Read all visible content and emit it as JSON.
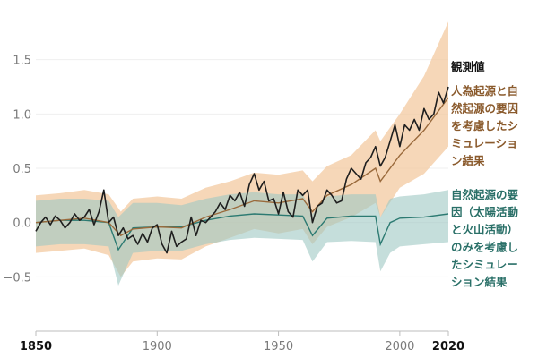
{
  "colors": {
    "observed": "#1e1e1e",
    "human_natural": "#9a6a3c",
    "human_natural_band": "#f3c9a0",
    "natural_only": "#2c7a72",
    "natural_only_band": "#9fc8c3",
    "overlap_band": "#c9c3b6",
    "axis": "#bdbdbd",
    "grid": "#efefef"
  },
  "chart_data": {
    "type": "line",
    "title": "",
    "xlabel": "",
    "ylabel": "",
    "xlim": [
      1850,
      2020
    ],
    "ylim": [
      -1.0,
      2.0
    ],
    "grid": true,
    "y_ticks": [
      {
        "value": -0.5,
        "label": "−0.5"
      },
      {
        "value": 0.0,
        "label": "0.0"
      },
      {
        "value": 0.5,
        "label": "0.5"
      },
      {
        "value": 1.0,
        "label": "1.0"
      },
      {
        "value": 1.5,
        "label": "1.5"
      }
    ],
    "x_ticks": [
      {
        "value": 1850,
        "label": "1850",
        "bold": true
      },
      {
        "value": 1900,
        "label": "1900",
        "bold": false
      },
      {
        "value": 1950,
        "label": "1950",
        "bold": false
      },
      {
        "value": 2000,
        "label": "2000",
        "bold": false
      },
      {
        "value": 2020,
        "label": "2020",
        "bold": true
      }
    ],
    "legend": [
      {
        "series": "observed",
        "lines": [
          "観測値"
        ]
      },
      {
        "series": "human_natural",
        "lines": [
          "人為起源と自",
          "然起源の要因",
          "を考慮したシ",
          "ミュレーショ",
          "ン結果"
        ]
      },
      {
        "series": "natural_only",
        "lines": [
          "自然起源の要",
          "因（太陽活動",
          "と火山活動）",
          "のみを考慮し",
          "たシミュレー",
          "ション結果"
        ]
      }
    ],
    "series": [
      {
        "id": "observed",
        "name": "観測値",
        "x": [
          1850,
          1852,
          1854,
          1856,
          1858,
          1860,
          1862,
          1864,
          1866,
          1868,
          1870,
          1872,
          1874,
          1876,
          1878,
          1880,
          1882,
          1884,
          1886,
          1888,
          1890,
          1892,
          1894,
          1896,
          1898,
          1900,
          1902,
          1904,
          1906,
          1908,
          1910,
          1912,
          1914,
          1916,
          1918,
          1920,
          1922,
          1924,
          1926,
          1928,
          1930,
          1932,
          1934,
          1936,
          1938,
          1940,
          1942,
          1944,
          1946,
          1948,
          1950,
          1952,
          1954,
          1956,
          1958,
          1960,
          1962,
          1964,
          1966,
          1968,
          1970,
          1972,
          1974,
          1976,
          1978,
          1980,
          1982,
          1984,
          1986,
          1988,
          1990,
          1992,
          1994,
          1996,
          1998,
          2000,
          2002,
          2004,
          2006,
          2008,
          2010,
          2012,
          2014,
          2016,
          2018,
          2020
        ],
        "y": [
          -0.08,
          0.0,
          0.05,
          -0.02,
          0.06,
          0.02,
          -0.05,
          0.0,
          0.08,
          0.02,
          0.05,
          0.12,
          -0.02,
          0.1,
          0.3,
          0.0,
          0.05,
          -0.12,
          -0.05,
          -0.15,
          -0.12,
          -0.2,
          -0.1,
          -0.18,
          -0.05,
          -0.02,
          -0.2,
          -0.28,
          -0.08,
          -0.22,
          -0.18,
          -0.15,
          0.05,
          -0.12,
          0.02,
          0.0,
          0.05,
          0.1,
          0.18,
          0.12,
          0.25,
          0.2,
          0.28,
          0.15,
          0.35,
          0.45,
          0.3,
          0.38,
          0.2,
          0.22,
          0.08,
          0.28,
          0.1,
          0.05,
          0.3,
          0.25,
          0.3,
          0.0,
          0.15,
          0.18,
          0.3,
          0.25,
          0.18,
          0.2,
          0.4,
          0.5,
          0.45,
          0.4,
          0.55,
          0.6,
          0.7,
          0.52,
          0.6,
          0.75,
          0.9,
          0.7,
          0.9,
          0.85,
          0.95,
          0.85,
          1.05,
          0.95,
          1.0,
          1.2,
          1.1,
          1.25
        ]
      },
      {
        "id": "human_natural",
        "name": "人為起源と自然起源の要因を考慮したシミュレーション結果",
        "x": [
          1850,
          1860,
          1870,
          1880,
          1885,
          1890,
          1900,
          1910,
          1920,
          1930,
          1940,
          1950,
          1960,
          1964,
          1970,
          1980,
          1990,
          1992,
          2000,
          2010,
          2020
        ],
        "y": [
          0.0,
          0.02,
          0.04,
          0.0,
          -0.12,
          -0.06,
          -0.04,
          -0.05,
          0.05,
          0.12,
          0.2,
          0.18,
          0.22,
          0.1,
          0.25,
          0.35,
          0.5,
          0.38,
          0.62,
          0.85,
          1.15
        ],
        "band_low": [
          -0.28,
          -0.26,
          -0.24,
          -0.3,
          -0.5,
          -0.36,
          -0.33,
          -0.34,
          -0.22,
          -0.14,
          -0.06,
          -0.1,
          -0.06,
          -0.2,
          -0.04,
          0.05,
          0.18,
          0.05,
          0.32,
          0.45,
          0.7
        ],
        "band_high": [
          0.25,
          0.27,
          0.3,
          0.26,
          0.1,
          0.22,
          0.24,
          0.22,
          0.32,
          0.38,
          0.46,
          0.44,
          0.48,
          0.38,
          0.52,
          0.62,
          0.85,
          0.75,
          1.0,
          1.35,
          1.85
        ]
      },
      {
        "id": "natural_only",
        "name": "自然起源の要因（太陽活動と火山活動）のみを考慮したシミュレーション結果",
        "x": [
          1850,
          1860,
          1870,
          1880,
          1884,
          1890,
          1900,
          1910,
          1920,
          1930,
          1940,
          1950,
          1960,
          1964,
          1970,
          1980,
          1990,
          1992,
          1996,
          2000,
          2010,
          2020
        ],
        "y": [
          0.0,
          0.02,
          0.02,
          0.0,
          -0.25,
          -0.05,
          -0.04,
          -0.04,
          0.02,
          0.06,
          0.08,
          0.07,
          0.06,
          -0.12,
          0.04,
          0.06,
          0.06,
          -0.2,
          0.0,
          0.04,
          0.05,
          0.08
        ],
        "band_low": [
          -0.22,
          -0.2,
          -0.2,
          -0.22,
          -0.58,
          -0.28,
          -0.26,
          -0.26,
          -0.2,
          -0.16,
          -0.14,
          -0.15,
          -0.16,
          -0.36,
          -0.18,
          -0.17,
          -0.18,
          -0.45,
          -0.28,
          -0.22,
          -0.2,
          -0.18
        ],
        "band_high": [
          0.2,
          0.22,
          0.22,
          0.2,
          0.05,
          0.18,
          0.18,
          0.16,
          0.22,
          0.26,
          0.28,
          0.26,
          0.26,
          0.08,
          0.24,
          0.26,
          0.26,
          0.05,
          0.22,
          0.24,
          0.26,
          0.3
        ]
      }
    ]
  }
}
